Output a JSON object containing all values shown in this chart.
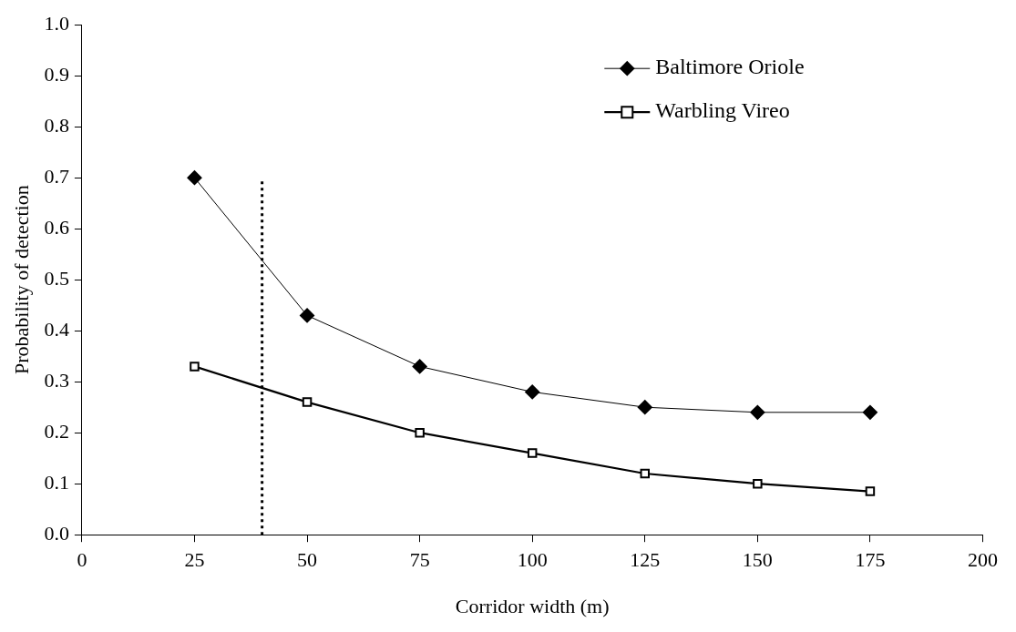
{
  "chart_data": {
    "type": "line",
    "xlabel": "Corridor width (m)",
    "ylabel": "Probability of detection",
    "x": [
      25,
      50,
      75,
      100,
      125,
      150,
      175
    ],
    "series": [
      {
        "name": "Baltimore Oriole",
        "color": "#000000",
        "marker": "diamond",
        "values": [
          0.7,
          0.43,
          0.33,
          0.28,
          0.25,
          0.24,
          0.24
        ]
      },
      {
        "name": "Warbling Vireo",
        "color": "#000000",
        "marker": "square",
        "values": [
          0.33,
          0.26,
          0.2,
          0.16,
          0.12,
          0.1,
          0.085
        ]
      },
      {
        "color": "#000000",
        "marker": "none",
        "line_style": "dotted",
        "x": [
          40,
          40
        ],
        "values": [
          0,
          0.7
        ]
      }
    ],
    "xlim": [
      0,
      200
    ],
    "xticks": [
      0,
      25,
      50,
      75,
      100,
      125,
      150,
      175,
      200
    ],
    "ylim": [
      0,
      1
    ],
    "yticks": [
      {
        "value": 0,
        "label": "0.0"
      },
      {
        "value": 0.1,
        "label": "0.1"
      },
      {
        "value": 0.2,
        "label": "0.2"
      },
      {
        "value": 0.3,
        "label": "0.3"
      },
      {
        "value": 0.4,
        "label": "0.4"
      },
      {
        "value": 0.5,
        "label": "0.5"
      },
      {
        "value": 0.6,
        "label": "0.6"
      },
      {
        "value": 0.7,
        "label": "0.7"
      },
      {
        "value": 0.8,
        "label": "0.8"
      },
      {
        "value": 0.9,
        "label": "0.9"
      },
      {
        "value": 1,
        "label": "1.0"
      }
    ],
    "grid": false,
    "legend": "top right"
  }
}
